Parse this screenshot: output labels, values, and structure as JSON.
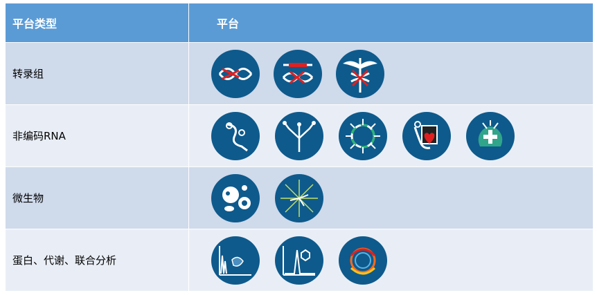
{
  "header": {
    "col_type": "平台类型",
    "col_platform": "平台"
  },
  "rows": [
    {
      "label": "转录组",
      "icons": [
        "dna-scissors-icon",
        "dna-cut-icon",
        "caduceus-dna-icon"
      ]
    },
    {
      "label": "非编码RNA",
      "icons": [
        "rna-strand-icon",
        "rna-tree-icon",
        "rna-circle-icon",
        "rna-heart-icon",
        "rna-medical-icon"
      ]
    },
    {
      "label": "微生物",
      "icons": [
        "microbe-cells-icon",
        "phylogenetic-tree-icon"
      ]
    },
    {
      "label": "蛋白、代谢、联合分析",
      "icons": [
        "mass-spectrum-icon",
        "chromatogram-molecule-icon",
        "circular-genome-icon"
      ]
    }
  ],
  "colors": {
    "header_bg": "#5b9bd5",
    "row_dark": "#cfdaeb",
    "row_light": "#e9eef6",
    "badge": "#0e5a8c"
  }
}
